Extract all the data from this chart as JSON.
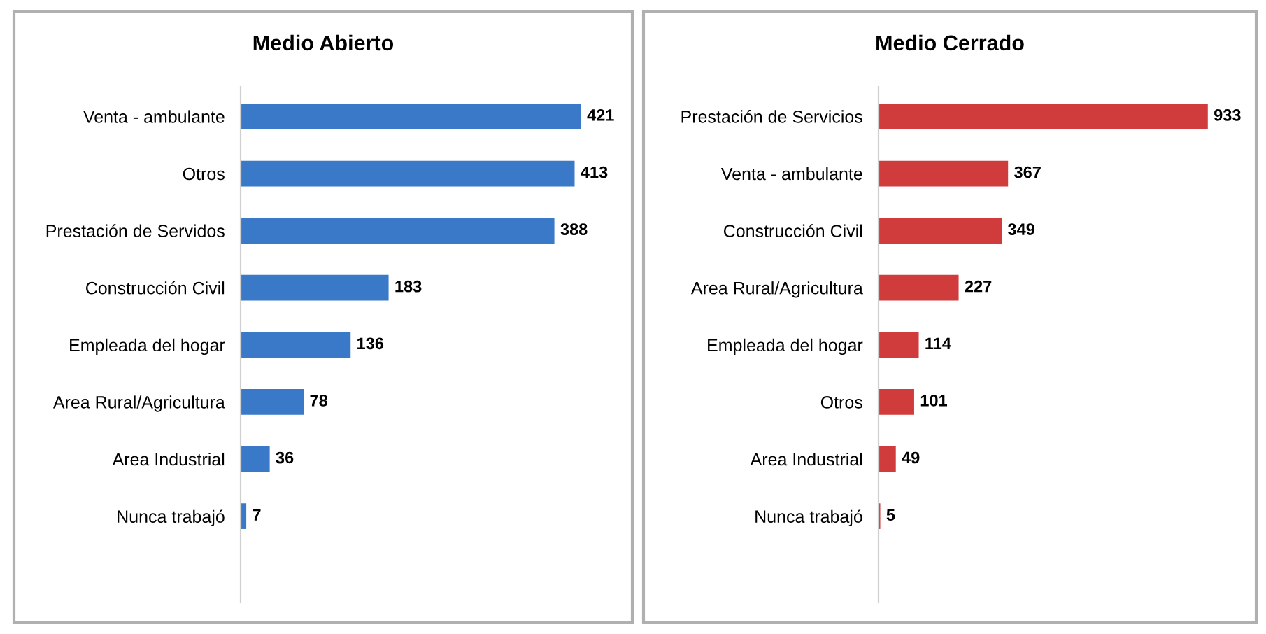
{
  "chart_data": [
    {
      "type": "bar",
      "orientation": "horizontal",
      "title": "Medio Abierto",
      "data_labels": true,
      "grid": false,
      "categories": [
        "Venta - ambulante",
        "Otros",
        "Prestación de Servidos",
        "Construcción Civil",
        "Empleada del hogar",
        "Area Rural/Agricultura",
        "Area Industrial",
        "Nunca trabajó"
      ],
      "series": [
        {
          "color": "#3a78c8",
          "values": [
            421,
            413,
            388,
            183,
            136,
            78,
            36,
            7
          ]
        }
      ]
    },
    {
      "type": "bar",
      "orientation": "horizontal",
      "title": "Medio Cerrado",
      "data_labels": true,
      "grid": false,
      "categories": [
        "Prestación de Servicios",
        "Venta - ambulante",
        "Construcción Civil",
        "Area Rural/Agricultura",
        "Empleada del hogar",
        "Otros",
        "Area Industrial",
        "Nunca trabajó"
      ],
      "series": [
        {
          "color": "#d03c3c",
          "values": [
            933,
            367,
            349,
            227,
            114,
            101,
            49,
            5
          ]
        }
      ]
    }
  ]
}
